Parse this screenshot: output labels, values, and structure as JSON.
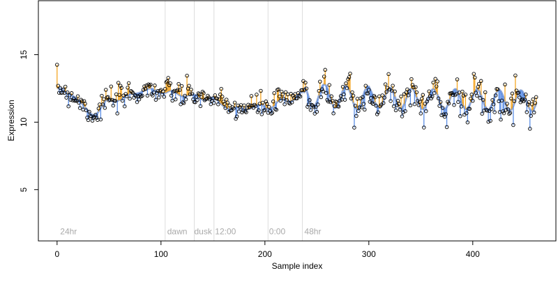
{
  "chart_data": {
    "type": "scatter",
    "title": "",
    "xlabel": "Sample index",
    "ylabel": "Expression",
    "xlim": [
      -18,
      480
    ],
    "ylim": [
      1.2,
      19
    ],
    "x_ticks": [
      0,
      100,
      200,
      300,
      400
    ],
    "y_ticks": [
      5,
      10,
      15
    ],
    "grid": false,
    "legend": "none",
    "n_samples": 462,
    "vlines": [
      104,
      132,
      151,
      203,
      236
    ],
    "annotations": [
      {
        "x": 3,
        "label": "24hr"
      },
      {
        "x": 106,
        "label": "dawn"
      },
      {
        "x": 132,
        "label": "dusk"
      },
      {
        "x": 152,
        "label": "12:00"
      },
      {
        "x": 204,
        "label": "0:00"
      },
      {
        "x": 238,
        "label": "48hr"
      }
    ],
    "annotation_y": 1.9,
    "series": [
      {
        "role": "fitted-curve",
        "color": "#8fa8d8"
      },
      {
        "role": "residual-above",
        "color": "#f5a623"
      },
      {
        "role": "residual-below",
        "color": "#5b8ee6"
      },
      {
        "role": "observed",
        "color": "#000000"
      }
    ],
    "segments": [
      {
        "x0": 0,
        "x1": 12,
        "y0": 12.5,
        "y1": 12.1,
        "amp": 0.1
      },
      {
        "x0": 12,
        "x1": 35,
        "y0": 12.1,
        "y1": 10.6,
        "amp": 0.1
      },
      {
        "x0": 35,
        "x1": 50,
        "y0": 10.6,
        "y1": 11.6,
        "amp": 0.1
      },
      {
        "x0": 50,
        "x1": 90,
        "y0": 11.6,
        "y1": 12.4,
        "amp": 0.1
      },
      {
        "x0": 90,
        "x1": 105,
        "y0": 12.4,
        "y1": 12.2,
        "amp": 0.1
      },
      {
        "x0": 105,
        "x1": 145,
        "y0": 12.2,
        "y1": 11.8,
        "amp": 0.15
      },
      {
        "x0": 145,
        "x1": 170,
        "y0": 11.8,
        "y1": 11.0,
        "amp": 0.1
      },
      {
        "x0": 170,
        "x1": 200,
        "y0": 11.0,
        "y1": 11.2,
        "amp": 0.1
      },
      {
        "x0": 200,
        "x1": 238,
        "y0": 11.2,
        "y1": 12.0,
        "amp": 0.25
      },
      {
        "x0": 238,
        "x1": 300,
        "y0": 12.0,
        "y1": 11.8,
        "amp": 0.85
      },
      {
        "x0": 300,
        "x1": 380,
        "y0": 11.8,
        "y1": 11.7,
        "amp": 0.75
      },
      {
        "x0": 380,
        "x1": 462,
        "y0": 11.7,
        "y1": 11.6,
        "amp": 0.75
      }
    ],
    "period": 21,
    "noise": [
      {
        "x0": 0,
        "x1": 238,
        "sd": 0.45
      },
      {
        "x0": 238,
        "x1": 462,
        "sd": 0.6
      }
    ],
    "outliers": [
      {
        "x": 286,
        "y": 9.6
      },
      {
        "x": 282,
        "y": 13.6
      }
    ]
  }
}
